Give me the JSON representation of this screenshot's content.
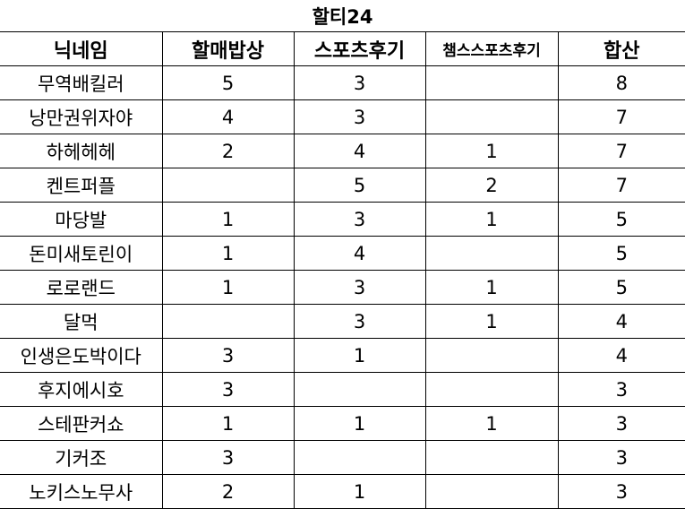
{
  "title": "할티24",
  "headers": [
    "닉네임",
    "할매밥상",
    "스포츠후기",
    "챔스스포츠후기",
    "합산"
  ],
  "rows": [
    [
      "무역배킬러",
      "5",
      "3",
      "",
      "8"
    ],
    [
      "낭만권위자야",
      "4",
      "3",
      "",
      "7"
    ],
    [
      "하헤헤헤",
      "2",
      "4",
      "1",
      "7"
    ],
    [
      "켄트퍼플",
      "",
      "5",
      "2",
      "7"
    ],
    [
      "마당발",
      "1",
      "3",
      "1",
      "5"
    ],
    [
      "돈미새토린이",
      "1",
      "4",
      "",
      "5"
    ],
    [
      "로로랜드",
      "1",
      "3",
      "1",
      "5"
    ],
    [
      "달먹",
      "",
      "3",
      "1",
      "4"
    ],
    [
      "인생은도박이다",
      "3",
      "1",
      "",
      "4"
    ],
    [
      "후지에시호",
      "3",
      "",
      "",
      "3"
    ],
    [
      "스테판커쇼",
      "1",
      "1",
      "1",
      "3"
    ],
    [
      "기커조",
      "3",
      "",
      "",
      "3"
    ],
    [
      "노키스노무사",
      "2",
      "1",
      "",
      "3"
    ]
  ]
}
